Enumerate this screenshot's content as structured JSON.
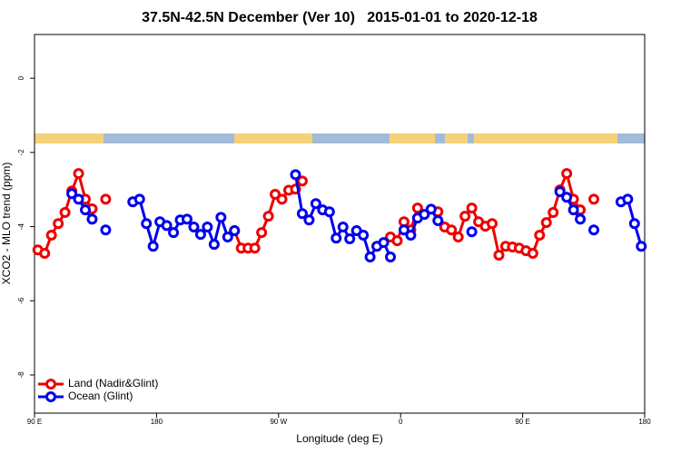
{
  "chart_data": {
    "type": "line",
    "title": "37.5N-42.5N December (Ver 10)   2015-01-01 to 2020-12-18",
    "x_label": "Longitude (deg E)",
    "y_label": "XCO2 - MLO trend (ppm)",
    "legend": "bottom-left",
    "x": [
      92.5,
      97.5,
      102.5,
      107.5,
      112.5,
      117.5,
      122.5,
      127.5,
      132.5,
      137.5,
      142.5,
      147.5,
      152.5,
      157.5,
      162.5,
      167.5,
      172.5,
      177.5,
      182.5,
      187.5,
      192.5,
      197.5,
      202.5,
      207.5,
      212.5,
      217.5,
      222.5,
      227.5,
      232.5,
      237.5,
      242.5,
      247.5,
      252.5,
      257.5,
      262.5,
      267.5,
      272.5,
      277.5,
      282.5,
      287.5,
      292.5,
      297.5,
      302.5,
      307.5,
      312.5,
      317.5,
      322.5,
      327.5,
      332.5,
      337.5,
      342.5,
      347.5,
      352.5,
      357.5,
      362.5,
      367.5,
      372.5,
      377.5,
      382.5,
      387.5,
      392.5,
      397.5,
      402.5,
      407.5,
      412.5,
      417.5,
      422.5,
      427.5,
      432.5,
      437.5,
      442.5,
      447.5,
      452.5,
      457.5,
      462.5,
      467.5,
      472.5,
      477.5,
      482.5,
      487.5,
      492.5,
      497.5,
      502.5,
      507.5,
      512.5,
      517.5,
      522.5,
      527.5,
      532.5,
      537.5
    ],
    "xlim": [
      90,
      540
    ],
    "xticks": [
      {
        "value": 90,
        "label": "90 E"
      },
      180,
      {
        "value": 270,
        "label": "90 W"
      },
      {
        "value": 360,
        "label": "0"
      },
      {
        "value": 450,
        "label": "90 E"
      },
      {
        "value": 540,
        "label": "180"
      }
    ],
    "ylim": [
      -9.03,
      1.18
    ],
    "yticks": [
      0,
      -2,
      -4,
      -6,
      -8
    ],
    "series": [
      {
        "name": "Land (Nadir&Glint)",
        "color": "#ee0000",
        "values": [
          -4.63,
          -4.72,
          -4.23,
          -3.92,
          -3.62,
          -3.04,
          -2.57,
          -3.26,
          -3.52,
          null,
          -3.26,
          null,
          null,
          null,
          null,
          null,
          null,
          null,
          null,
          null,
          null,
          null,
          null,
          null,
          null,
          null,
          null,
          null,
          null,
          -4.11,
          -4.58,
          -4.58,
          -4.58,
          -4.16,
          -3.72,
          -3.13,
          -3.26,
          -3.02,
          -2.99,
          -2.77,
          null,
          null,
          null,
          null,
          null,
          null,
          null,
          null,
          null,
          null,
          null,
          null,
          -4.28,
          -4.38,
          -3.87,
          -4.09,
          -3.5,
          null,
          null,
          -3.6,
          -4.01,
          -4.09,
          -4.28,
          -3.72,
          -3.5,
          -3.87,
          -3.99,
          -3.92,
          -4.77,
          -4.53,
          -4.55,
          -4.58,
          -4.65,
          -4.72,
          -4.23,
          -3.89,
          -3.62,
          -3.01,
          -2.57,
          -3.26,
          -3.55,
          null,
          -3.26,
          null,
          null,
          null,
          null,
          null,
          null,
          null
        ]
      },
      {
        "name": "Ocean (Glint)",
        "color": "#0000ee",
        "values": [
          null,
          null,
          null,
          null,
          null,
          -3.11,
          -3.26,
          -3.55,
          -3.8,
          null,
          -4.09,
          null,
          null,
          null,
          -3.33,
          -3.26,
          -3.92,
          -4.53,
          -3.87,
          -3.97,
          -4.16,
          -3.82,
          -3.8,
          -4.01,
          -4.21,
          -4.01,
          -4.48,
          -3.75,
          -4.28,
          -4.11,
          null,
          null,
          null,
          null,
          null,
          null,
          null,
          null,
          -2.6,
          -3.65,
          -3.82,
          -3.38,
          -3.55,
          -3.6,
          -4.31,
          -4.01,
          -4.33,
          -4.11,
          -4.23,
          -4.82,
          -4.53,
          -4.43,
          -4.82,
          null,
          -4.09,
          -4.23,
          -3.77,
          -3.67,
          -3.53,
          -3.84,
          null,
          null,
          null,
          null,
          -4.14,
          null,
          null,
          null,
          null,
          null,
          null,
          null,
          null,
          null,
          null,
          null,
          null,
          -3.06,
          -3.21,
          -3.55,
          -3.8,
          null,
          -4.09,
          null,
          null,
          null,
          -3.33,
          -3.26,
          -3.92,
          -4.53
        ]
      }
    ]
  }
}
